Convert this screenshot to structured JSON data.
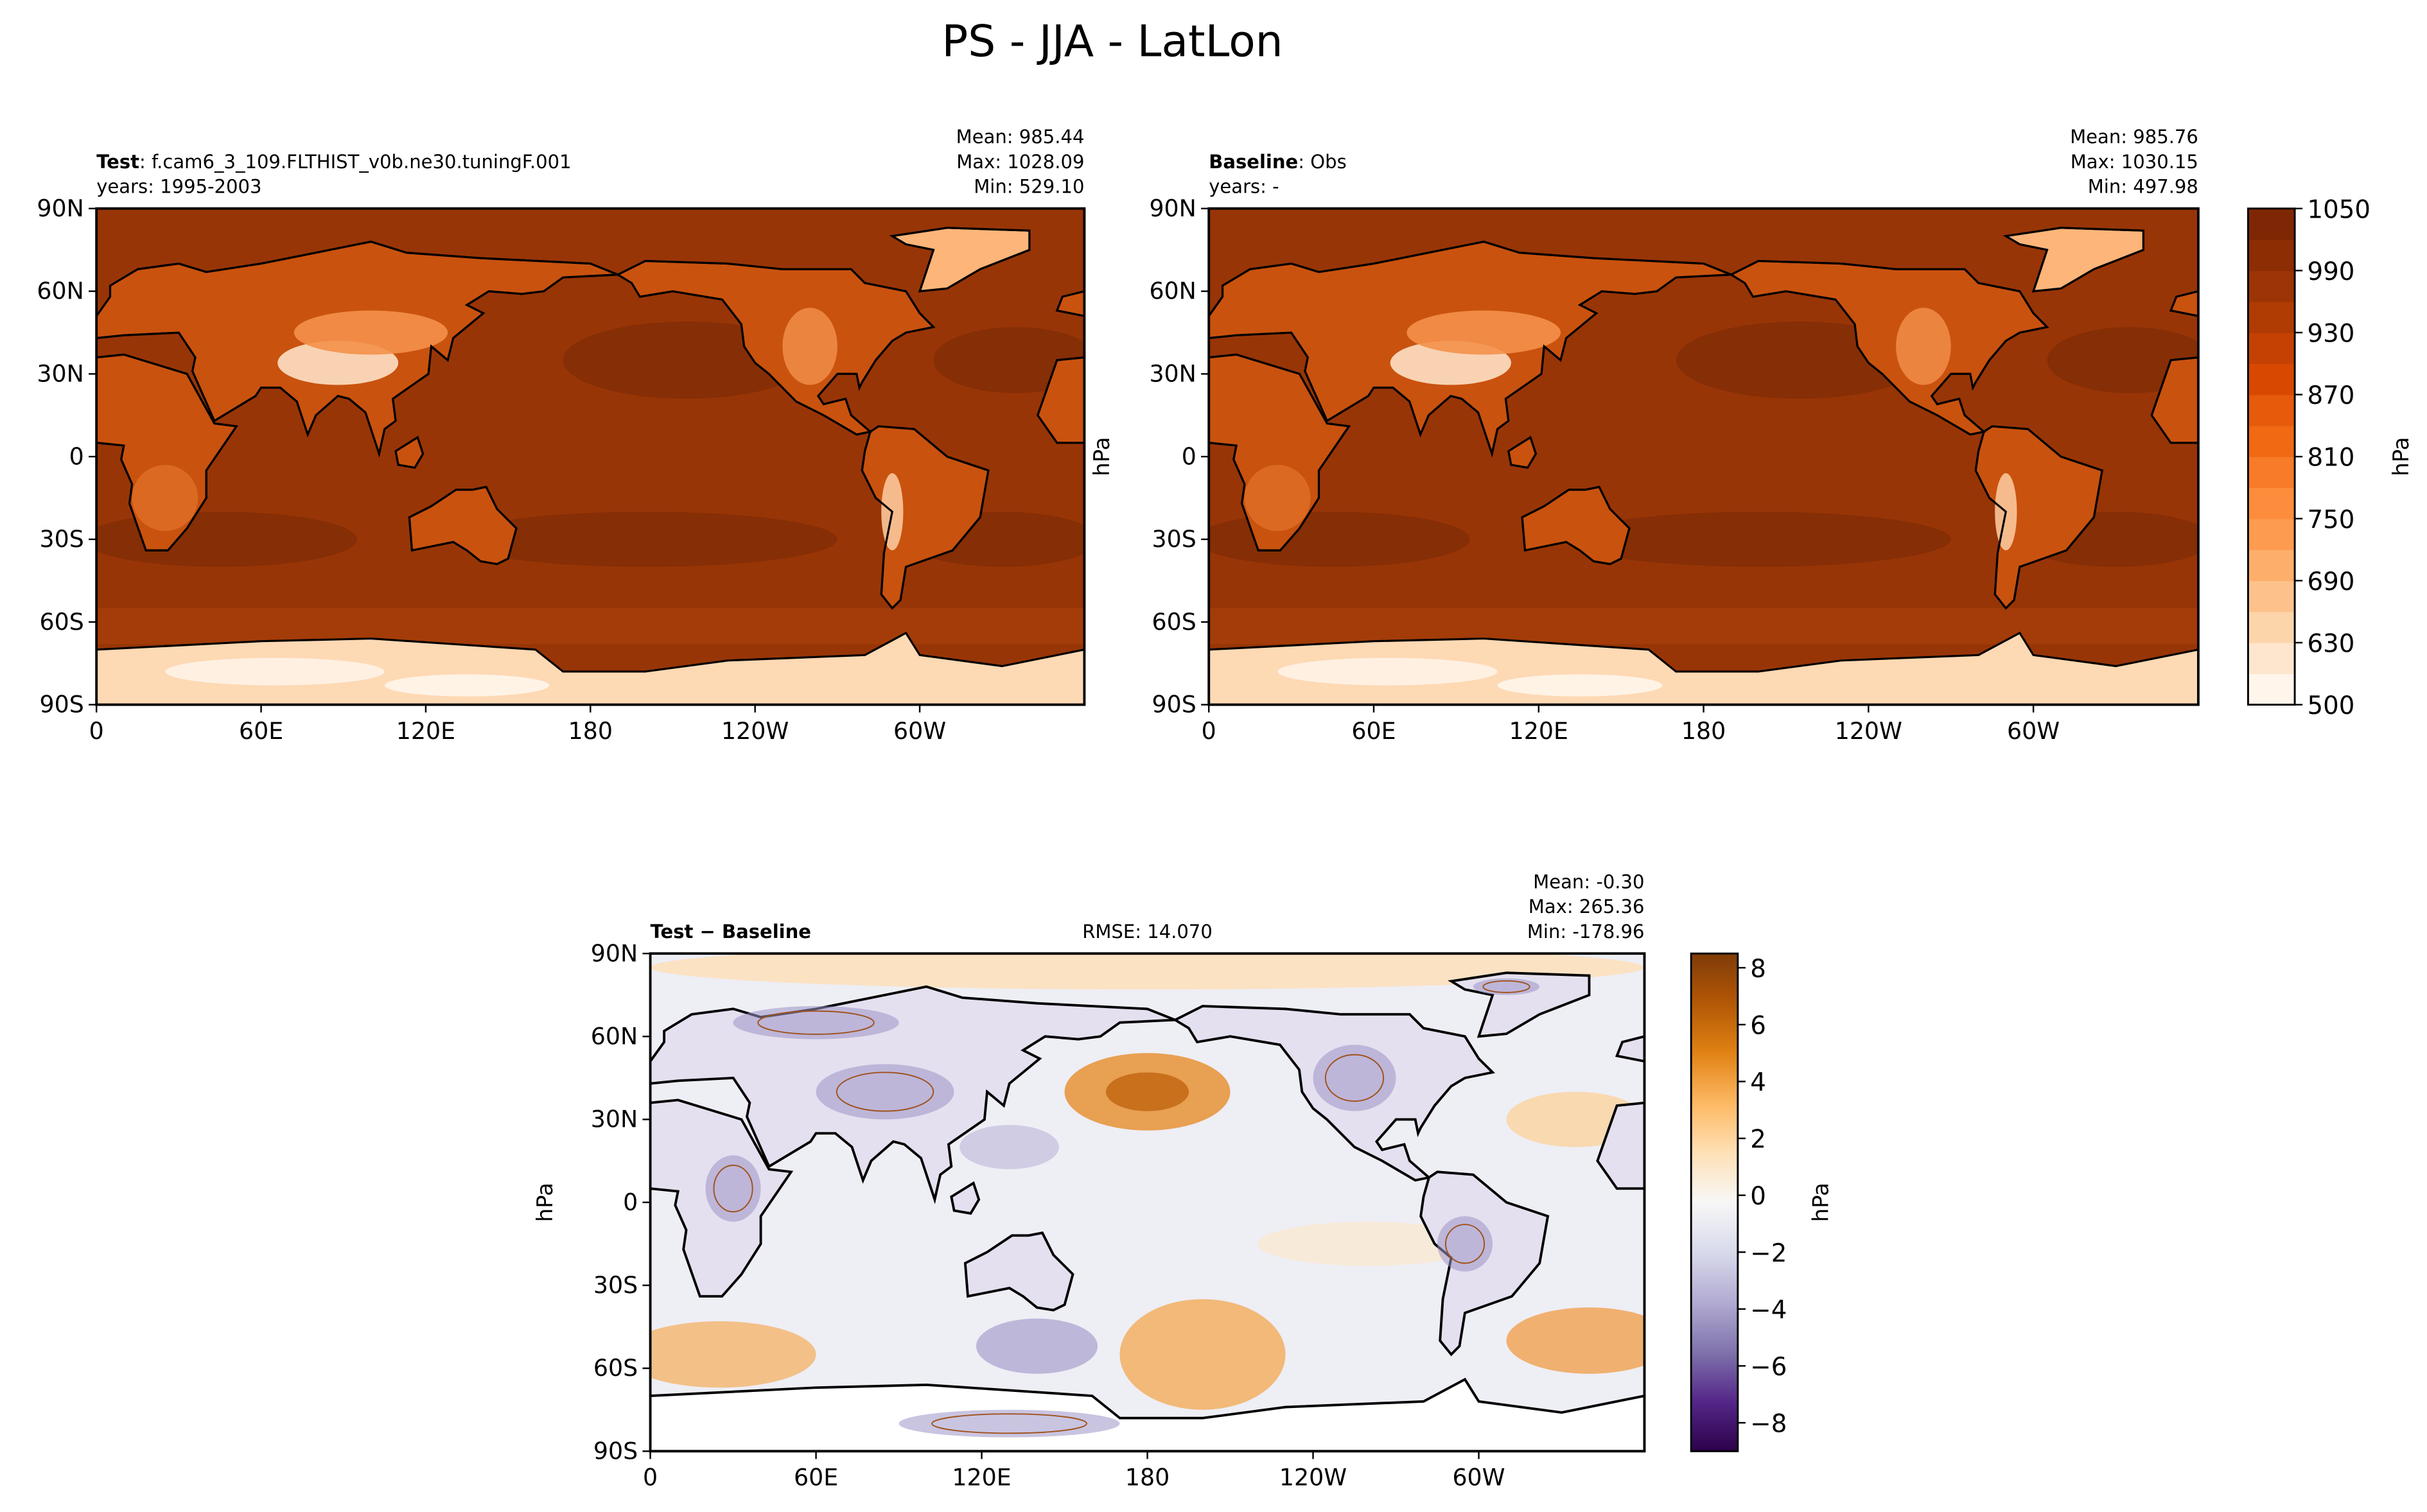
{
  "title": "PS - JJA - LatLon",
  "chart_data": [
    {
      "type": "contour",
      "name": "Test",
      "case": ": f.cam6_3_109.FLTHIST_v0b.ne30.tuningF.001",
      "years": "years: 1995-2003",
      "stats": [
        "Mean: 985.44",
        "Max: 1028.09",
        "Min: 529.10"
      ],
      "xlim": [
        0,
        360
      ],
      "ylim": [
        -90,
        90
      ],
      "xticks": [
        0,
        {
          "value": 60,
          "label": "60E"
        },
        {
          "value": 120,
          "label": "120E"
        },
        180,
        {
          "value": 240,
          "label": "120W"
        },
        {
          "value": 300,
          "label": "60W"
        }
      ],
      "yticks": [
        {
          "value": -90,
          "label": "90S"
        },
        {
          "value": -60,
          "label": "60S"
        },
        {
          "value": -30,
          "label": "30S"
        },
        0,
        {
          "value": 30,
          "label": "30N"
        },
        {
          "value": 60,
          "label": "60N"
        },
        {
          "value": 90,
          "label": "90N"
        }
      ]
    },
    {
      "type": "contour",
      "name": "Baseline",
      "case": ": Obs",
      "years": "years: -",
      "stats": [
        "Mean: 985.76",
        "Max: 1030.15",
        "Min: 497.98"
      ],
      "ylabel": "hPa",
      "xlim": [
        0,
        360
      ],
      "ylim": [
        -90,
        90
      ],
      "xticks": [
        0,
        {
          "value": 60,
          "label": "60E"
        },
        {
          "value": 120,
          "label": "120E"
        },
        180,
        {
          "value": 240,
          "label": "120W"
        },
        {
          "value": 300,
          "label": "60W"
        }
      ],
      "yticks": [
        {
          "value": -90,
          "label": "90S"
        },
        {
          "value": -60,
          "label": "60S"
        },
        {
          "value": -30,
          "label": "30S"
        },
        0,
        {
          "value": 30,
          "label": "30N"
        },
        {
          "value": 60,
          "label": "60N"
        },
        {
          "value": 90,
          "label": "90N"
        }
      ],
      "colorbar": {
        "label": "hPa",
        "levels": [
          500,
          600,
          630,
          660,
          690,
          720,
          750,
          780,
          810,
          840,
          870,
          900,
          930,
          960,
          990,
          1020,
          1050
        ],
        "colors": [
          "#fff5eb",
          "#fee6ce",
          "#fdd5ab",
          "#fdc28c",
          "#fdae6b",
          "#fd9b50",
          "#fd8d3c",
          "#f77b28",
          "#f16913",
          "#e55a0b",
          "#d94801",
          "#c44103",
          "#b03b03",
          "#9c3405",
          "#8c2d04",
          "#7f2704"
        ],
        "ticks": [
          500,
          630,
          690,
          750,
          810,
          870,
          930,
          990,
          1050
        ]
      }
    },
    {
      "type": "contour",
      "name": "Test − Baseline",
      "rmse": "RMSE: 14.070",
      "stats": [
        "Mean: -0.30",
        "Max: 265.36",
        "Min: -178.96"
      ],
      "ylabel": "hPa",
      "xlim": [
        0,
        360
      ],
      "ylim": [
        -90,
        90
      ],
      "xticks": [
        0,
        {
          "value": 60,
          "label": "60E"
        },
        {
          "value": 120,
          "label": "120E"
        },
        180,
        {
          "value": 240,
          "label": "120W"
        },
        {
          "value": 300,
          "label": "60W"
        }
      ],
      "yticks": [
        {
          "value": -90,
          "label": "90S"
        },
        {
          "value": -60,
          "label": "60S"
        },
        {
          "value": -30,
          "label": "30S"
        },
        0,
        {
          "value": 30,
          "label": "30N"
        },
        {
          "value": 60,
          "label": "60N"
        },
        {
          "value": 90,
          "label": "90N"
        }
      ],
      "colorbar": {
        "label": "hPa",
        "lim": [
          -9,
          8.5
        ],
        "colors": [
          "#2d004b",
          "#542788",
          "#8073ac",
          "#b2abd2",
          "#d8daeb",
          "#f7f7f7",
          "#fee0b6",
          "#fdb863",
          "#e08214",
          "#b35806",
          "#7f3b08"
        ],
        "ticks": [
          {
            "value": -8,
            "label": "−8"
          },
          {
            "value": -6,
            "label": "−6"
          },
          {
            "value": -4,
            "label": "−4"
          },
          {
            "value": -2,
            "label": "−2"
          },
          0,
          2,
          4,
          6,
          8
        ]
      }
    }
  ]
}
